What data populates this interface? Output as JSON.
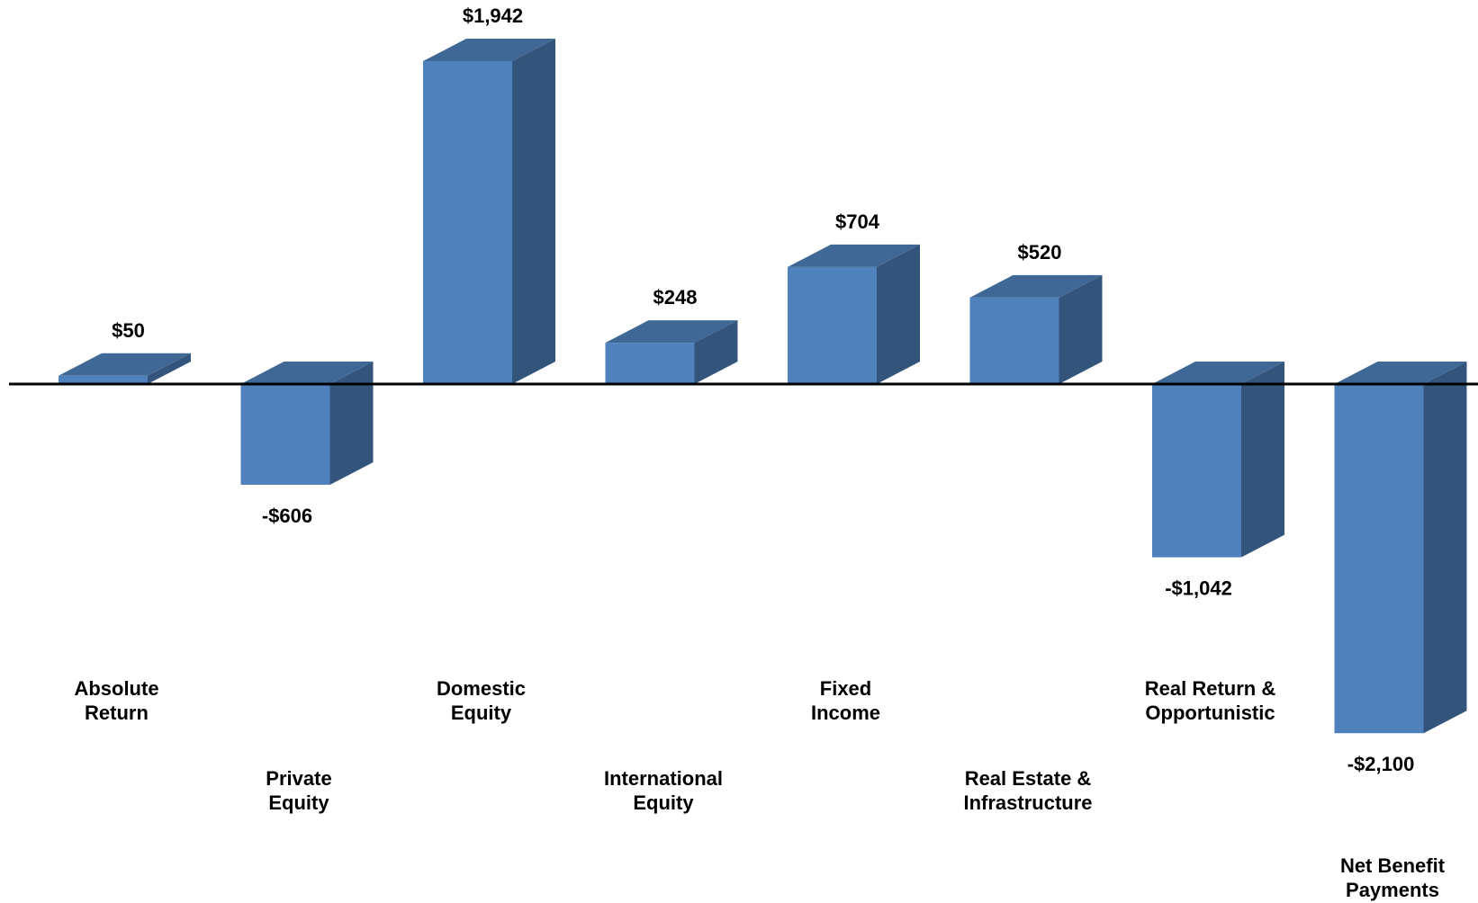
{
  "chart_data": {
    "type": "bar",
    "style": "3d-waterfall-columns",
    "categories": [
      "Absolute Return",
      "Private Equity",
      "Domestic Equity",
      "International Equity",
      "Fixed Income",
      "Real Estate & Infrastructure",
      "Real Return & Opportunistic",
      "Net Benefit Payments"
    ],
    "category_lines": [
      [
        "Absolute",
        "Return"
      ],
      [
        "Private",
        "Equity"
      ],
      [
        "Domestic",
        "Equity"
      ],
      [
        "International",
        "Equity"
      ],
      [
        "Fixed",
        "Income"
      ],
      [
        "Real Estate &",
        "Infrastructure"
      ],
      [
        "Real Return &",
        "Opportunistic"
      ],
      [
        "Net Benefit",
        "Payments"
      ]
    ],
    "values": [
      50,
      -606,
      1942,
      248,
      704,
      520,
      -1042,
      -2100
    ],
    "data_labels": [
      "$50",
      "-$606",
      "$1,942",
      "$248",
      "$704",
      "$520",
      "-$1,042",
      "-$2,100"
    ],
    "title": "",
    "xlabel": "",
    "ylabel": "",
    "ylim": [
      -2100,
      1942
    ],
    "grid": false,
    "legend": "none",
    "colors": {
      "front": "#4f81bd",
      "side": "#33557c",
      "top": "#3f6896",
      "baseline": "#000000"
    }
  }
}
